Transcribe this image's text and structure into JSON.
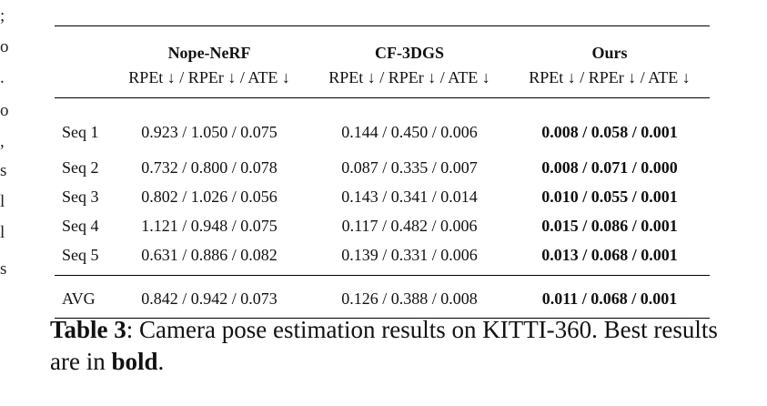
{
  "margin_glyphs": [
    ";",
    "o",
    ".",
    "o",
    ",",
    "s",
    "l",
    "l",
    "s"
  ],
  "table": {
    "methods": [
      "Nope-NeRF",
      "CF-3DGS",
      "Ours"
    ],
    "metric_header": "RPEt ↓ / RPEr ↓ / ATE ↓",
    "rows": [
      {
        "label": "Seq 1",
        "values": [
          "0.923 / 1.050 / 0.075",
          "0.144 / 0.450 / 0.006",
          "0.008 / 0.058 / 0.001"
        ]
      },
      {
        "label": "Seq 2",
        "values": [
          "0.732 / 0.800 / 0.078",
          "0.087 / 0.335 / 0.007",
          "0.008 / 0.071 / 0.000"
        ]
      },
      {
        "label": "Seq 3",
        "values": [
          "0.802 / 1.026 / 0.056",
          "0.143 / 0.341 / 0.014",
          "0.010 / 0.055 / 0.001"
        ]
      },
      {
        "label": "Seq 4",
        "values": [
          "1.121 / 0.948 / 0.075",
          "0.117 / 0.482 / 0.006",
          "0.015 / 0.086 / 0.001"
        ]
      },
      {
        "label": "Seq 5",
        "values": [
          "0.631 / 0.886 / 0.082",
          "0.139 / 0.331 / 0.006",
          "0.013 / 0.068 / 0.001"
        ]
      }
    ],
    "avg": {
      "label": "AVG",
      "values": [
        "0.842 / 0.942 / 0.073",
        "0.126 / 0.388 / 0.008",
        "0.011 / 0.068 / 0.001"
      ]
    }
  },
  "caption": {
    "label": "Table 3",
    "text_1": ": Camera pose estimation results on KITTI-360. Best results are in ",
    "bold_word": "bold",
    "text_2": "."
  }
}
